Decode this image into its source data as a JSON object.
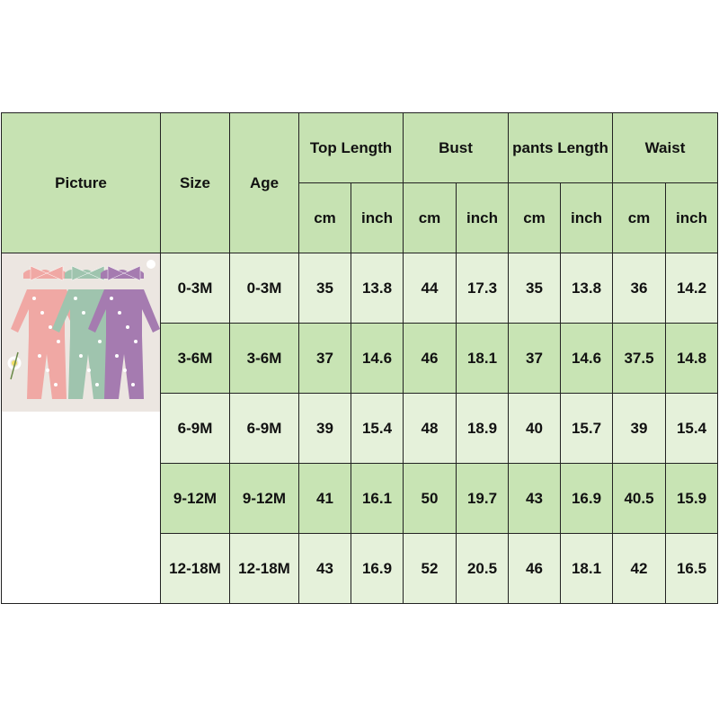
{
  "headers": {
    "picture": "Picture",
    "size": "Size",
    "age": "Age",
    "groups": [
      "Top Length",
      "Bust",
      "pants Length",
      "Waist"
    ],
    "units": [
      "cm",
      "inch",
      "cm",
      "inch",
      "cm",
      "inch",
      "cm",
      "inch"
    ]
  },
  "rows": [
    {
      "size": "0-3M",
      "age": "0-3M",
      "values": [
        "35",
        "13.8",
        "44",
        "17.3",
        "35",
        "13.8",
        "36",
        "14.2"
      ]
    },
    {
      "size": "3-6M",
      "age": "3-6M",
      "values": [
        "37",
        "14.6",
        "46",
        "18.1",
        "37",
        "14.6",
        "37.5",
        "14.8"
      ]
    },
    {
      "size": "6-9M",
      "age": "6-9M",
      "values": [
        "39",
        "15.4",
        "48",
        "18.9",
        "40",
        "15.7",
        "39",
        "15.4"
      ]
    },
    {
      "size": "9-12M",
      "age": "9-12M",
      "values": [
        "41",
        "16.1",
        "50",
        "19.7",
        "43",
        "16.9",
        "40.5",
        "15.9"
      ]
    },
    {
      "size": "12-18M",
      "age": "12-18M",
      "values": [
        "43",
        "16.9",
        "52",
        "20.5",
        "46",
        "18.1",
        "42",
        "16.5"
      ]
    }
  ],
  "colors": {
    "header": "#c6e2b2",
    "row_light": "#e5f1da",
    "row_dark": "#c8e4b4",
    "outfit_pink": "#f0a8a4",
    "outfit_green": "#9fc4ae",
    "outfit_purple": "#a57bb0"
  }
}
